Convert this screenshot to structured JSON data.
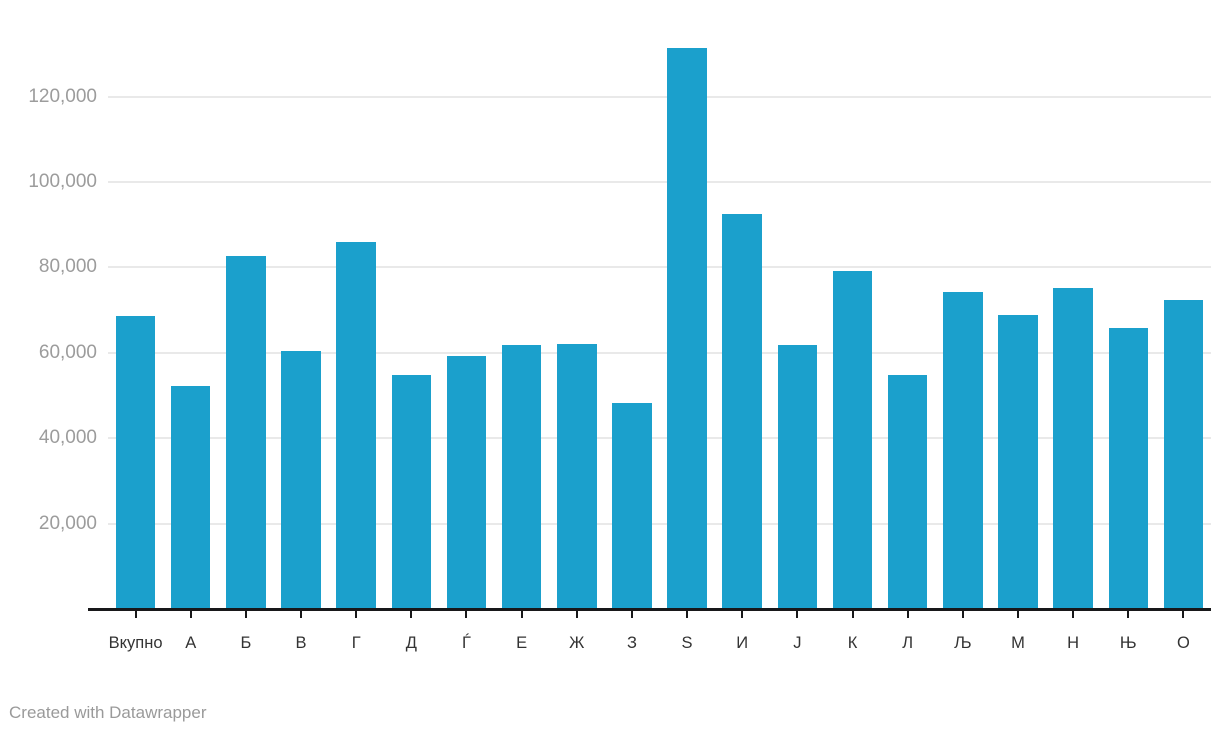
{
  "footer": {
    "text": "Created with Datawrapper"
  },
  "colors": {
    "bar": "#1BA0CC",
    "grid": "#e9e9e9",
    "axis": "#18181a",
    "y_label": "#9c9c9c",
    "x_label": "#333333",
    "footer": "#9a9a9a"
  },
  "chart_data": {
    "type": "bar",
    "title": "",
    "xlabel": "",
    "ylabel": "",
    "categories": [
      "Вкупно",
      "А",
      "Б",
      "В",
      "Г",
      "Д",
      "Ѓ",
      "Е",
      "Ж",
      "З",
      "Ѕ",
      "И",
      "Ј",
      "К",
      "Л",
      "Љ",
      "М",
      "Н",
      "Њ",
      "О"
    ],
    "values": [
      68600,
      52300,
      82600,
      60500,
      86000,
      54800,
      59250,
      61900,
      62100,
      48200,
      131400,
      92500,
      61850,
      79200,
      54800,
      74250,
      68850,
      75100,
      65900,
      72350
    ],
    "y_ticks": [
      {
        "value": 20000,
        "label": "20,000"
      },
      {
        "value": 40000,
        "label": "40,000"
      },
      {
        "value": 60000,
        "label": "60,000"
      },
      {
        "value": 80000,
        "label": "80,000"
      },
      {
        "value": 100000,
        "label": "100,000"
      },
      {
        "value": 120000,
        "label": "120,000"
      }
    ],
    "ylim": [
      0,
      142600
    ],
    "grid": "horizontal",
    "legend": "none"
  }
}
